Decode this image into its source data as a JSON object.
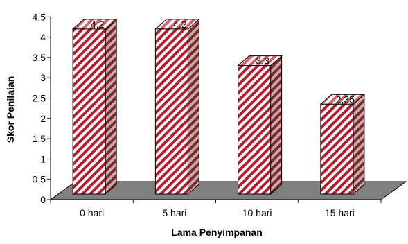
{
  "chart_data": {
    "type": "bar",
    "style": "3d-column",
    "categories": [
      "0 hari",
      "5 hari",
      "10 hari",
      "15 hari"
    ],
    "values": [
      4.2,
      4.2,
      3.3,
      2.35
    ],
    "data_labels": [
      "4,2",
      "4,2",
      "3,3",
      "2,35"
    ],
    "y_ticks": [
      "0",
      "0,5",
      "1",
      "1,5",
      "2",
      "2,5",
      "3",
      "3,5",
      "4",
      "4,5"
    ],
    "ylim": [
      0,
      4.5
    ],
    "xlabel": "Lama Penyimpanan",
    "ylabel": "Skor Penilaian",
    "grid": false,
    "legend": "none",
    "colors": {
      "stripe_red": "#c0182a",
      "stripe_white": "#ffffff",
      "side_stripe_dark": "#7a2a2a",
      "side_stripe_light": "#c9a9a9",
      "floor": "#808080",
      "outline": "#000000"
    }
  }
}
